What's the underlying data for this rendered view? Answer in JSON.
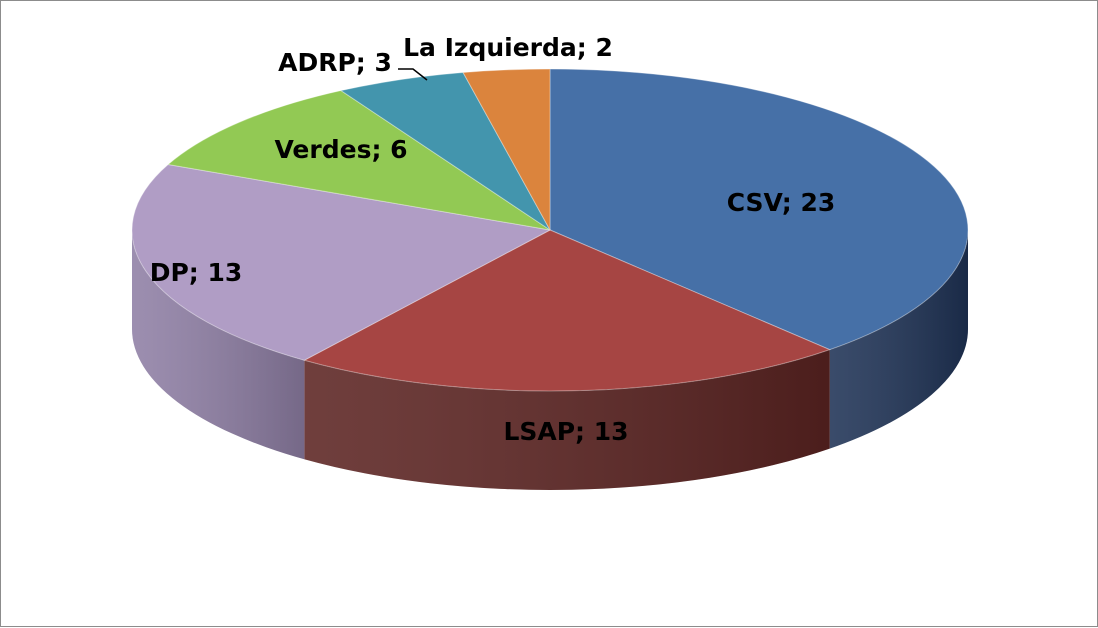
{
  "chart_data": {
    "type": "pie",
    "title": "",
    "slices": [
      {
        "label": "CSV",
        "value": 23,
        "color": "#4670a7",
        "side_color": "#1f3356"
      },
      {
        "label": "LSAP",
        "value": 13,
        "color": "#a64543",
        "side_color": "#5c2422"
      },
      {
        "label": "DP",
        "value": 13,
        "color": "#b09dc5",
        "side_color": "#8f7fa5"
      },
      {
        "label": "Verdes",
        "value": 6,
        "color": "#92c954",
        "side_color": "#6f9c3b"
      },
      {
        "label": "ADRP",
        "value": 3,
        "color": "#4395ad",
        "side_color": "#2c6d80"
      },
      {
        "label": "La Izquierda",
        "value": 2,
        "color": "#db843d",
        "side_color": "#a65e24"
      }
    ],
    "labels": [
      "CSV; 23",
      "LSAP; 13",
      "DP; 13",
      "Verdes; 6",
      "ADRP; 3",
      "La Izquierda; 2"
    ],
    "legend": "none",
    "3d": true
  }
}
